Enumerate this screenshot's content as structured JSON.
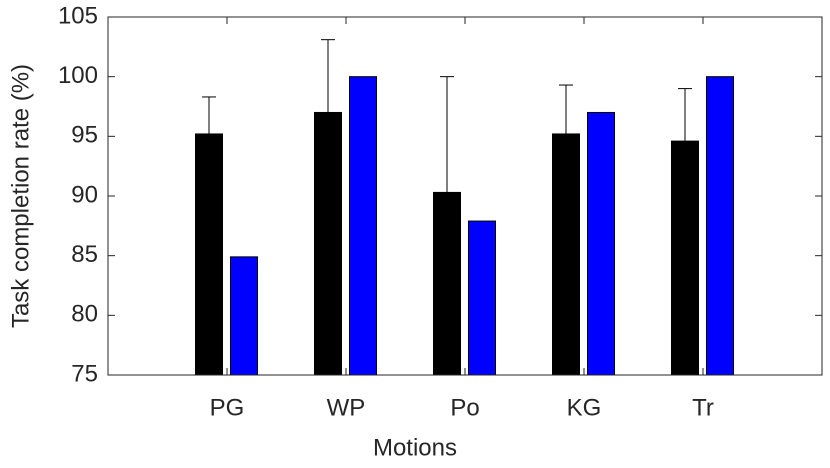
{
  "chart_data": {
    "type": "bar",
    "xlabel": "Motions",
    "ylabel": "Task completion rate (%)",
    "categories": [
      "PG",
      "WP",
      "Po",
      "KG",
      "Tr"
    ],
    "series": [
      {
        "color": "#000000",
        "values": [
          95.2,
          97.0,
          90.3,
          95.2,
          94.6
        ],
        "errors": [
          3.1,
          6.1,
          9.7,
          4.1,
          4.4
        ]
      },
      {
        "color": "#0000ff",
        "values": [
          84.9,
          100.0,
          87.9,
          97.0,
          100.0
        ]
      }
    ],
    "ylim": [
      75,
      105
    ],
    "yticks": [
      75,
      80,
      85,
      90,
      95,
      100,
      105
    ]
  }
}
